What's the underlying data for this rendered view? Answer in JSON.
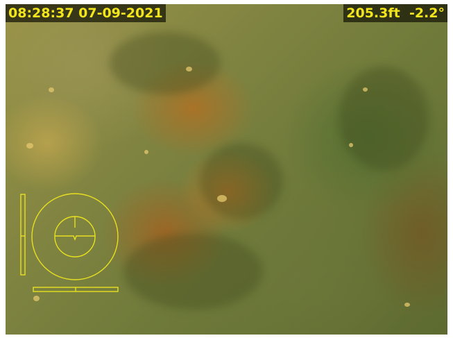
{
  "osd": {
    "timestamp": "08:28:37 07-09-2021",
    "depth": "205.3ft",
    "tilt": "-2.2°"
  },
  "colors": {
    "osd_text": "#f2e51d",
    "osd_background": "#1c1c0a",
    "gauge_line": "#e8e020"
  },
  "gauges": {
    "roll_deg": -2.2,
    "compass_icon": "circle-gauge-icon"
  }
}
